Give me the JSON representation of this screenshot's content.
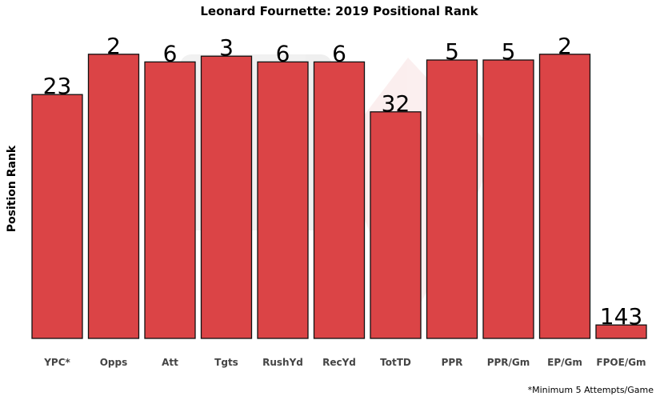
{
  "chart_data": {
    "type": "bar",
    "title": "Leonard Fournette: 2019 Positional Rank",
    "xlabel": "",
    "ylabel": "Position Rank",
    "categories": [
      "YPC*",
      "Opps",
      "Att",
      "Tgts",
      "RushYd",
      "RecYd",
      "TotTD",
      "PPR",
      "PPR/Gm",
      "EP/Gm",
      "FPOE/Gm"
    ],
    "values": [
      23,
      2,
      6,
      3,
      6,
      6,
      32,
      5,
      5,
      2,
      143
    ],
    "value_labels": [
      "23",
      "2",
      "6",
      "3",
      "6",
      "6",
      "32",
      "5",
      "5",
      "2",
      "143"
    ],
    "bar_color": "#d93a3c",
    "bar_edge_color": "#111111",
    "grid": false,
    "legend": "none",
    "footnote": "*Minimum 5 Attempts/Game"
  }
}
